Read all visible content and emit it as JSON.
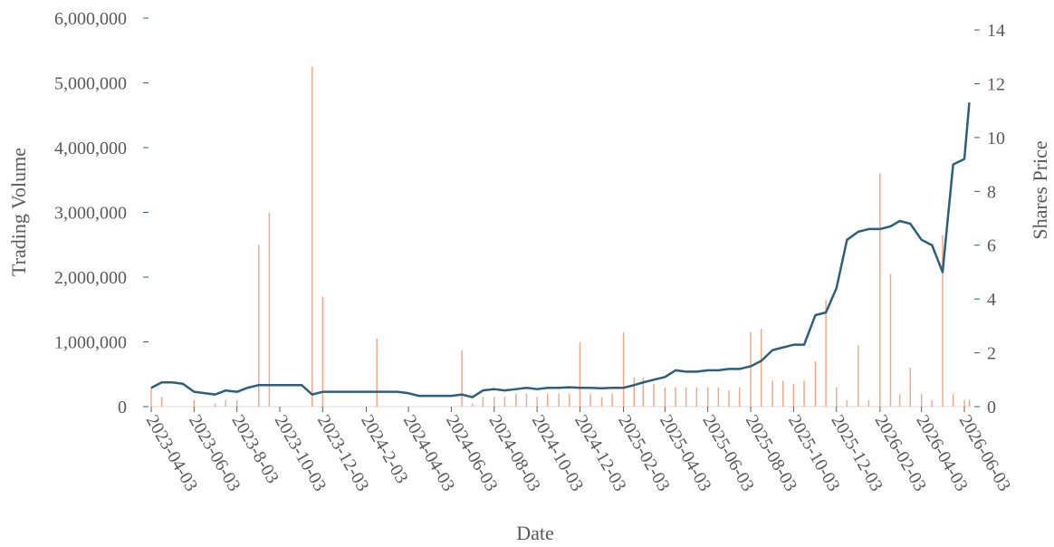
{
  "chart_data": {
    "type": "bar-line",
    "x_label": "Date",
    "y_label": "Trading Volume",
    "y2_label": "Shares Price",
    "x": [
      "2023-04-03",
      "2023-04-18",
      "2023-05-03",
      "2023-05-18",
      "2023-06-03",
      "2023-06-18",
      "2023-07-03",
      "2023-07-18",
      "2023-08-03",
      "2023-08-18",
      "2023-09-03",
      "2023-09-18",
      "2023-10-03",
      "2023-10-18",
      "2023-11-03",
      "2023-11-18",
      "2023-12-03",
      "2023-12-18",
      "2024-01-03",
      "2024-01-18",
      "2024-02-03",
      "2024-02-18",
      "2024-03-03",
      "2024-03-18",
      "2024-04-03",
      "2024-04-18",
      "2024-05-03",
      "2024-05-18",
      "2024-06-03",
      "2024-06-18",
      "2024-07-03",
      "2024-07-18",
      "2024-08-03",
      "2024-08-18",
      "2024-09-03",
      "2024-09-18",
      "2024-10-03",
      "2024-10-18",
      "2024-11-03",
      "2024-11-18",
      "2024-12-03",
      "2024-12-18",
      "2025-01-03",
      "2025-01-18",
      "2025-02-03",
      "2025-02-18",
      "2025-03-03",
      "2025-03-18",
      "2025-04-03",
      "2025-04-18",
      "2025-05-03",
      "2025-05-18",
      "2025-06-03",
      "2025-06-18",
      "2025-07-03",
      "2025-07-18",
      "2025-08-03",
      "2025-08-18",
      "2025-09-03",
      "2025-09-18",
      "2025-10-03",
      "2025-10-18",
      "2025-11-03",
      "2025-11-18",
      "2025-12-03",
      "2025-12-18",
      "2026-01-03",
      "2026-01-18",
      "2026-02-03",
      "2026-02-18",
      "2026-03-03",
      "2026-03-18",
      "2026-04-03",
      "2026-04-18",
      "2026-05-03",
      "2026-05-18",
      "2026-06-03",
      "2026-06-10"
    ],
    "series": [
      {
        "name": "Trading Volume",
        "kind": "bar",
        "color": "#f2a98c",
        "values": [
          300000,
          150000,
          0,
          0,
          100000,
          0,
          50000,
          100000,
          100000,
          0,
          2500000,
          3000000,
          0,
          0,
          0,
          5250000,
          1700000,
          0,
          0,
          0,
          0,
          1050000,
          0,
          0,
          0,
          0,
          0,
          0,
          0,
          870000,
          50000,
          150000,
          150000,
          150000,
          200000,
          200000,
          150000,
          200000,
          200000,
          200000,
          1000000,
          200000,
          150000,
          200000,
          1150000,
          450000,
          450000,
          350000,
          300000,
          300000,
          300000,
          300000,
          300000,
          300000,
          250000,
          300000,
          1150000,
          1200000,
          400000,
          400000,
          350000,
          400000,
          700000,
          1650000,
          300000,
          100000,
          950000,
          100000,
          3600000,
          2050000,
          200000,
          600000,
          200000,
          100000,
          2650000,
          200000,
          100000,
          100000
        ]
      },
      {
        "name": "Shares Price",
        "kind": "line",
        "axis": "y2",
        "color": "#2c5f7c",
        "values": [
          0.7,
          0.9,
          0.9,
          0.85,
          0.55,
          0.5,
          0.45,
          0.6,
          0.55,
          0.7,
          0.8,
          0.8,
          0.8,
          0.8,
          0.8,
          0.45,
          0.55,
          0.55,
          0.55,
          0.55,
          0.55,
          0.55,
          0.55,
          0.55,
          0.5,
          0.4,
          0.4,
          0.4,
          0.4,
          0.45,
          0.35,
          0.6,
          0.65,
          0.6,
          0.65,
          0.7,
          0.65,
          0.7,
          0.7,
          0.72,
          0.7,
          0.7,
          0.68,
          0.7,
          0.7,
          0.8,
          0.9,
          1.0,
          1.1,
          1.35,
          1.3,
          1.3,
          1.35,
          1.35,
          1.4,
          1.4,
          1.5,
          1.7,
          2.1,
          2.2,
          2.3,
          2.3,
          3.4,
          3.5,
          4.4,
          6.2,
          6.5,
          6.6,
          6.6,
          6.7,
          6.9,
          6.8,
          6.2,
          6.0,
          5.0,
          9.0,
          9.2,
          11.3
        ]
      }
    ],
    "xlim": [
      "2023-04-03",
      "2026-06-12"
    ],
    "xticks": [
      {
        "value": "2023-04-03",
        "label": "2023-04-03"
      },
      {
        "value": "2023-06-03",
        "label": "2023-06-03"
      },
      {
        "value": "2023-08-03",
        "label": "2023-8-03"
      },
      {
        "value": "2023-10-03",
        "label": "2023-10-03"
      },
      {
        "value": "2023-12-03",
        "label": "2023-12-03"
      },
      {
        "value": "2024-02-03",
        "label": "2024-2-03"
      },
      {
        "value": "2024-04-03",
        "label": "2024-04-03"
      },
      {
        "value": "2024-06-03",
        "label": "2024-06-03"
      },
      {
        "value": "2024-08-03",
        "label": "2024-08-03"
      },
      {
        "value": "2024-10-03",
        "label": "2024-10-03"
      },
      {
        "value": "2024-12-03",
        "label": "2024-12-03"
      },
      {
        "value": "2025-02-03",
        "label": "2025-02-03"
      },
      {
        "value": "2025-04-03",
        "label": "2025-04-03"
      },
      {
        "value": "2025-06-03",
        "label": "2025-06-03"
      },
      {
        "value": "2025-08-03",
        "label": "2025-08-03"
      },
      {
        "value": "2025-10-03",
        "label": "2025-10-03"
      },
      {
        "value": "2025-12-03",
        "label": "2025-12-03"
      },
      {
        "value": "2026-02-03",
        "label": "2026-02-03"
      },
      {
        "value": "2026-04-03",
        "label": "2026-04-03"
      },
      {
        "value": "2026-06-03",
        "label": "2026-06-03"
      }
    ],
    "ylim": [
      0,
      6000000
    ],
    "yticks": [
      0,
      {
        "value": 1000000,
        "label": "1,000,000"
      },
      {
        "value": 2000000,
        "label": "2,000,000"
      },
      {
        "value": 3000000,
        "label": "3,000,000"
      },
      {
        "value": 4000000,
        "label": "4,000,000"
      },
      {
        "value": 5000000,
        "label": "5,000,000"
      },
      {
        "value": 6000000,
        "label": "6,000,000"
      }
    ],
    "y2lim": [
      0,
      14.44
    ],
    "y2ticks": [
      0,
      2,
      4,
      6,
      8,
      10,
      12,
      14
    ],
    "grid": false
  }
}
